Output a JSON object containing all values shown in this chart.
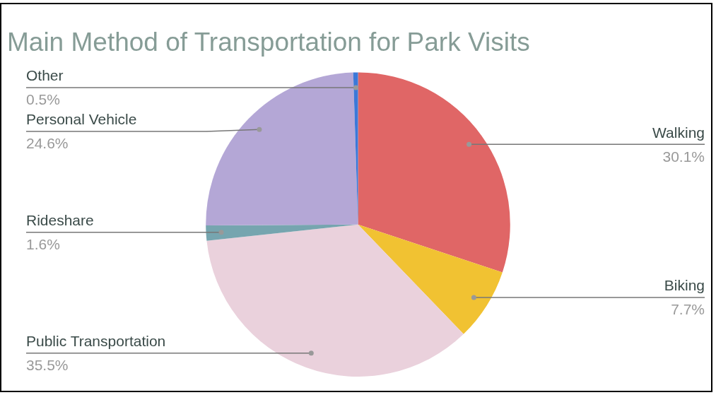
{
  "chart_data": {
    "type": "pie",
    "title": "Main Method of Transportation for Park Visits",
    "categories": [
      "Walking",
      "Biking",
      "Public Transportation",
      "Rideshare",
      "Personal Vehicle",
      "Other"
    ],
    "values": [
      30.1,
      7.7,
      35.5,
      1.6,
      24.6,
      0.5
    ],
    "value_labels": [
      "30.1%",
      "7.7%",
      "35.5%",
      "1.6%",
      "24.6%",
      "0.5%"
    ],
    "colors": [
      "#e06666",
      "#f1c232",
      "#ead1dc",
      "#76a5af",
      "#b4a7d6",
      "#3c78d8"
    ],
    "legend": false
  }
}
